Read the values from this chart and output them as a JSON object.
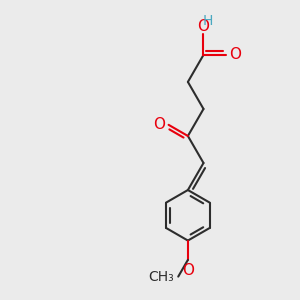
{
  "bg_color": "#ebebeb",
  "bond_color": "#2d2d2d",
  "oxygen_color": "#e8000d",
  "h_color": "#4aa8c0",
  "bond_width": 1.5,
  "font_size_atoms": 10,
  "fig_width": 3.0,
  "fig_height": 3.0,
  "dpi": 100,
  "xlim": [
    0,
    10
  ],
  "ylim": [
    0,
    10
  ]
}
